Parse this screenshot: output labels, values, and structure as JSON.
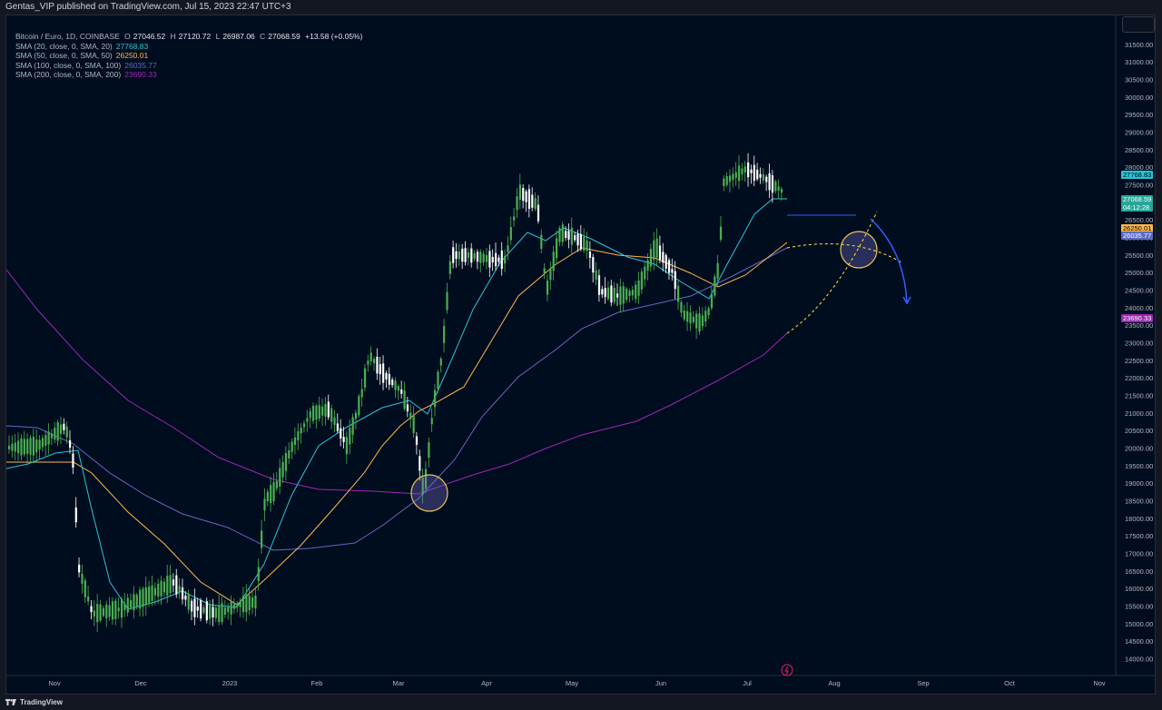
{
  "header": {
    "title": "Gentas_VIP published on TradingView.com, Jul 15, 2023 22:47 UTC+3"
  },
  "legend": {
    "symbol": "Bitcoin / Euro, 1D, COINBASE",
    "open_label": "O",
    "open": "27046.52",
    "high_label": "H",
    "high": "27120.72",
    "low_label": "L",
    "low": "26987.06",
    "close_label": "C",
    "close": "27068.59",
    "change": "+13.58 (+0.05%)",
    "sma": [
      {
        "label": "SMA (20, close, 0, SMA, 20)",
        "value": "27768.83",
        "color": "#26c6da"
      },
      {
        "label": "SMA (50, close, 0, SMA, 50)",
        "value": "26250.01",
        "color": "#ffb74d"
      },
      {
        "label": "SMA (100, close, 0, SMA, 100)",
        "value": "26035.77",
        "color": "#5c6bc0"
      },
      {
        "label": "SMA (200, close, 0, SMA, 200)",
        "value": "23690.33",
        "color": "#9c27b0"
      }
    ]
  },
  "price_axis": {
    "ticks": [
      "32000.00",
      "31500.00",
      "31000.00",
      "30500.00",
      "30000.00",
      "29500.00",
      "29000.00",
      "28500.00",
      "28000.00",
      "27500.00",
      "27000.00",
      "26500.00",
      "26000.00",
      "25500.00",
      "25000.00",
      "24500.00",
      "24000.00",
      "23500.00",
      "23000.00",
      "22500.00",
      "22000.00",
      "21500.00",
      "21000.00",
      "20500.00",
      "20000.00",
      "19500.00",
      "19000.00",
      "18500.00",
      "18000.00",
      "17500.00",
      "17000.00",
      "16500.00",
      "16000.00",
      "15500.00",
      "15000.00",
      "14500.00",
      "14000.00"
    ],
    "tags": [
      {
        "text": "27768.83",
        "price": 27768.83,
        "bg": "#26c6da",
        "fg": "#000000"
      },
      {
        "text": "27068.59",
        "sub": "04:12:28",
        "price": 27068.59,
        "bg": "#26a69a",
        "fg": "#ffffff"
      },
      {
        "text": "26250.01",
        "price": 26250.01,
        "bg": "#ffb74d",
        "fg": "#000000"
      },
      {
        "text": "26035.77",
        "price": 26035.77,
        "bg": "#5c6bc0",
        "fg": "#ffffff"
      },
      {
        "text": "23690.33",
        "price": 23690.33,
        "bg": "#9c27b0",
        "fg": "#ffffff"
      }
    ]
  },
  "time_axis": {
    "labels": [
      "Nov",
      "Dec",
      "2023",
      "Feb",
      "Mar",
      "Apr",
      "May",
      "Jun",
      "Jul",
      "Aug",
      "Sep",
      "Oct",
      "Nov"
    ]
  },
  "footer": {
    "brand": "TradingView"
  },
  "colors": {
    "up": "#4caf50",
    "down": "#ffffff",
    "background": "#000d1f",
    "annotation_circle": "#e8c35a",
    "arrow": "#2962ff",
    "projection": "#ffeb3b"
  },
  "icons": {
    "bolt": "lightning-icon",
    "logo": "tradingview-logo"
  }
}
